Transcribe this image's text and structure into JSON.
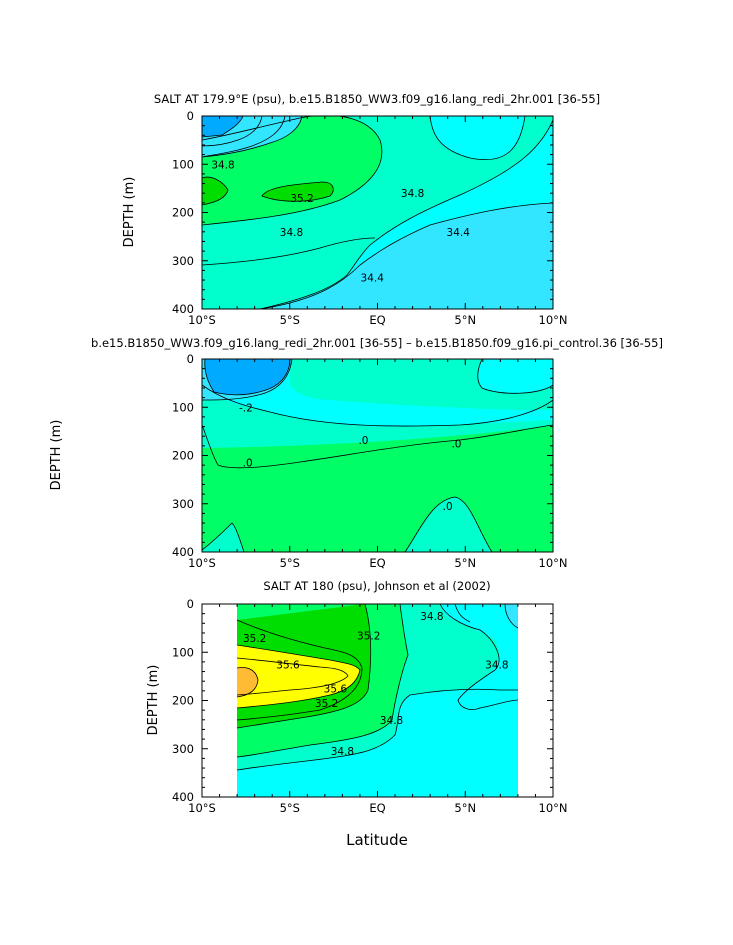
{
  "figure": {
    "xlabel": "Latitude"
  },
  "colors": {
    "c_a": "#00ffff",
    "c_b": "#00ffcc",
    "c_c": "#00ff66",
    "c_d": "#00dd00",
    "c_e": "#33e6ff",
    "c_f": "#00aaff",
    "c_g": "#ffff00",
    "c_h": "#ffbb33"
  },
  "chart_data": [
    {
      "type": "contour",
      "title": "SALT AT 179.9°E (psu), b.e15.B1850_WW3.f09_g16.lang_redi_2hr.001 [36-55]",
      "ylabel": "DEPTH (m)",
      "xlim": [
        -10,
        10
      ],
      "ylim": [
        400,
        0
      ],
      "xticks": [
        -10,
        -5,
        0,
        5,
        10
      ],
      "xtick_labels": [
        "10°S",
        "5°S",
        "EQ",
        "5°N",
        "10°N"
      ],
      "yticks": [
        0,
        100,
        200,
        300,
        400
      ],
      "ytick_labels": [
        "0",
        "100",
        "200",
        "300",
        "400"
      ],
      "contour_labels": [
        {
          "text": "34.8",
          "lat": -8.8,
          "depth": 100
        },
        {
          "text": "35.2",
          "lat": -4.3,
          "depth": 170
        },
        {
          "text": "34.8",
          "lat": 2.0,
          "depth": 160
        },
        {
          "text": "34.8",
          "lat": -4.9,
          "depth": 240
        },
        {
          "text": "34.4",
          "lat": 4.6,
          "depth": 240
        },
        {
          "text": "34.4",
          "lat": -0.3,
          "depth": 335
        }
      ]
    },
    {
      "type": "contour",
      "title": "b.e15.B1850_WW3.f09_g16.lang_redi_2hr.001 [36-55] – b.e15.B1850.f09_g16.pi_control.36 [36-55]",
      "ylabel": "DEPTH (m)",
      "xlim": [
        -10,
        10
      ],
      "ylim": [
        400,
        0
      ],
      "xticks": [
        -10,
        -5,
        0,
        5,
        10
      ],
      "xtick_labels": [
        "10°S",
        "5°S",
        "EQ",
        "5°N",
        "10°N"
      ],
      "yticks": [
        0,
        100,
        200,
        300,
        400
      ],
      "ytick_labels": [
        "0",
        "100",
        "200",
        "300",
        "400"
      ],
      "contour_labels": [
        {
          "text": "-.2",
          "lat": -7.5,
          "depth": 100
        },
        {
          "text": ".0",
          "lat": -0.8,
          "depth": 168
        },
        {
          "text": ".0",
          "lat": 4.5,
          "depth": 175
        },
        {
          "text": ".0",
          "lat": -7.4,
          "depth": 215
        },
        {
          "text": ".0",
          "lat": 4.0,
          "depth": 305
        }
      ]
    },
    {
      "type": "contour",
      "title": "SALT AT 180 (psu), Johnson et al (2002)",
      "ylabel": "DEPTH (m)",
      "xlim": [
        -10,
        10
      ],
      "ylim": [
        400,
        0
      ],
      "xticks": [
        -10,
        -5,
        0,
        5,
        10
      ],
      "xtick_labels": [
        "10°S",
        "5°S",
        "EQ",
        "5°N",
        "10°N"
      ],
      "yticks": [
        0,
        100,
        200,
        300,
        400
      ],
      "ytick_labels": [
        "0",
        "100",
        "200",
        "300",
        "400"
      ],
      "data_extent_lat": [
        -8,
        8
      ],
      "contour_labels": [
        {
          "text": "35.2",
          "lat": -7.0,
          "depth": 70
        },
        {
          "text": "35.6",
          "lat": -5.1,
          "depth": 125
        },
        {
          "text": "35.2",
          "lat": -0.5,
          "depth": 65
        },
        {
          "text": "34.8",
          "lat": 3.1,
          "depth": 25
        },
        {
          "text": "34.8",
          "lat": 6.8,
          "depth": 125
        },
        {
          "text": "35.6",
          "lat": -2.4,
          "depth": 175
        },
        {
          "text": "35.2",
          "lat": -2.9,
          "depth": 205
        },
        {
          "text": "34.8",
          "lat": 0.8,
          "depth": 240
        },
        {
          "text": "34.8",
          "lat": -2.0,
          "depth": 305
        }
      ]
    }
  ]
}
